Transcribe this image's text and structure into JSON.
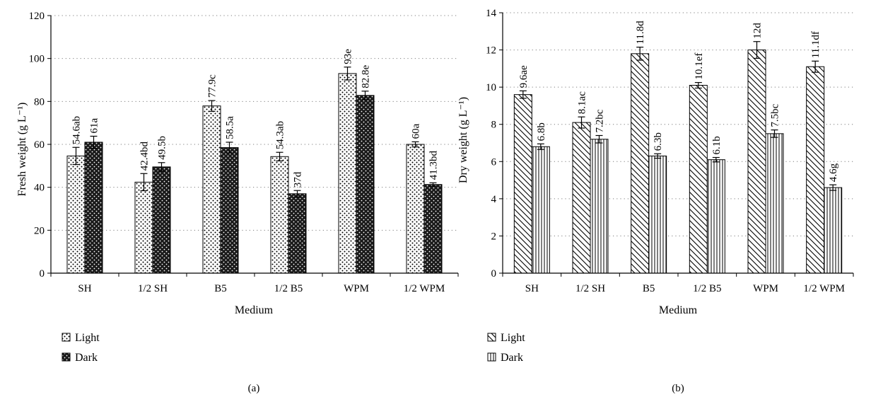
{
  "colors": {
    "axis": "#000000",
    "grid": "#7f7f7f",
    "ink": "#000000",
    "paper": "#ffffff"
  },
  "chart_data": [
    {
      "type": "bar",
      "panel_label": "(a)",
      "categories": [
        "SH",
        "1/2 SH",
        "B5",
        "1/2 B5",
        "WPM",
        "1/2 WPM"
      ],
      "xlabel": "Medium",
      "ylabel": "Fresh weight (g L⁻¹)",
      "ylim": [
        0,
        120
      ],
      "yticks": [
        0,
        20,
        40,
        60,
        80,
        100,
        120
      ],
      "grid": "horizontal dotted",
      "legend_placement": "bottom-left",
      "series": [
        {
          "name": "Light",
          "pattern": "dots-on-white",
          "values": [
            54.6,
            42.4,
            77.9,
            54.3,
            93,
            60
          ],
          "errors": [
            4,
            4,
            2.5,
            2,
            3,
            1.2
          ],
          "labels": [
            "54.6ab",
            "42.4bd",
            "77.9c",
            "54.3ab",
            "93e",
            "60a"
          ]
        },
        {
          "name": "Dark",
          "pattern": "dots-on-black",
          "values": [
            61,
            49.5,
            58.5,
            37,
            82.8,
            41.3
          ],
          "errors": [
            2.8,
            2,
            2.5,
            1.5,
            2,
            0.8
          ],
          "labels": [
            "61a",
            "49.5b",
            "58.5a",
            "37d",
            "82.8e",
            "41.3bd"
          ]
        }
      ]
    },
    {
      "type": "bar",
      "panel_label": "(b)",
      "categories": [
        "SH",
        "1/2 SH",
        "B5",
        "1/2 B5",
        "WPM",
        "1/2 WPM"
      ],
      "xlabel": "Medium",
      "ylabel": "Dry weight (g L⁻¹)",
      "ylim": [
        0,
        14
      ],
      "yticks": [
        0,
        2,
        4,
        6,
        8,
        10,
        12,
        14
      ],
      "grid": "horizontal dotted",
      "legend_placement": "bottom-left",
      "series": [
        {
          "name": "Light",
          "pattern": "diagonal-hatch",
          "values": [
            9.6,
            8.1,
            11.8,
            10.1,
            12,
            11.1
          ],
          "errors": [
            0.2,
            0.3,
            0.35,
            0.15,
            0.45,
            0.3
          ],
          "labels": [
            "9.6ae",
            "8.1ac",
            "11.8d",
            "10.1ef",
            "12d",
            "11.1df"
          ]
        },
        {
          "name": "Dark",
          "pattern": "vertical-lines",
          "values": [
            6.8,
            7.2,
            6.3,
            6.1,
            7.5,
            4.6
          ],
          "errors": [
            0.15,
            0.2,
            0.12,
            0.12,
            0.2,
            0.15
          ],
          "labels": [
            "6.8b",
            "7.2bc",
            "6.3b",
            "6.1b",
            "7.5bc",
            "4.6g"
          ]
        }
      ]
    }
  ]
}
